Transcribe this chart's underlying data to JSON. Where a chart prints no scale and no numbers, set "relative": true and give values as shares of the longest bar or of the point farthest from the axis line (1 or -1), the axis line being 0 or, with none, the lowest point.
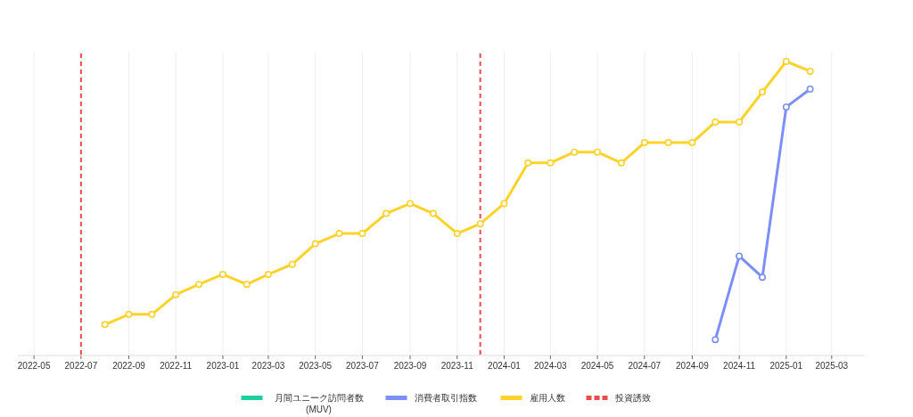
{
  "chart_data": {
    "type": "line",
    "relative": true,
    "grid": "x",
    "legend": "bottom",
    "marker": "circle",
    "line_style": "solid",
    "xlim": [
      "2022-04-10",
      "2025-04-13"
    ],
    "xticks": [
      "2022-05",
      "2022-07",
      "2022-09",
      "2022-11",
      "2023-01",
      "2023-03",
      "2023-05",
      "2023-07",
      "2023-09",
      "2023-11",
      "2024-01",
      "2024-03",
      "2024-05",
      "2024-07",
      "2024-09",
      "2024-11",
      "2025-01",
      "2025-03"
    ],
    "series": [
      {
        "name": "月間ユニーク訪問者数\n(MUV)",
        "color": "#1ecf9b"
      },
      {
        "name": "消費者取引指数",
        "color": "#7b8ff5",
        "x": [
          "2024-10",
          "2024-11",
          "2024-12",
          "2025-01",
          "2025-02"
        ],
        "values": [
          0.054,
          0.338,
          0.266,
          0.845,
          0.906
        ]
      },
      {
        "name": "雇用人数",
        "color": "#fdd22b",
        "x": [
          "2022-08",
          "2022-09",
          "2022-10",
          "2022-11",
          "2022-12",
          "2023-01",
          "2023-02",
          "2023-03",
          "2023-04",
          "2023-05",
          "2023-06",
          "2023-07",
          "2023-08",
          "2023-09",
          "2023-10",
          "2023-11",
          "2023-12",
          "2024-01",
          "2024-02",
          "2024-03",
          "2024-04",
          "2024-05",
          "2024-06",
          "2024-07",
          "2024-08",
          "2024-09",
          "2024-10",
          "2024-11",
          "2024-12",
          "2025-01",
          "2025-02"
        ],
        "values": [
          0.105,
          0.14,
          0.14,
          0.207,
          0.242,
          0.276,
          0.242,
          0.276,
          0.31,
          0.38,
          0.415,
          0.415,
          0.483,
          0.517,
          0.483,
          0.415,
          0.448,
          0.517,
          0.655,
          0.655,
          0.692,
          0.692,
          0.655,
          0.724,
          0.724,
          0.724,
          0.794,
          0.794,
          0.896,
          1,
          0.967
        ]
      }
    ],
    "ref_lines": [
      {
        "axis": "x",
        "value": "2022-07",
        "label": "投資誘致",
        "color": "#e84c4c",
        "line_style": "dashed"
      },
      {
        "axis": "x",
        "value": "2023-12",
        "color": "#e84c4c",
        "line_style": "dashed"
      }
    ]
  }
}
